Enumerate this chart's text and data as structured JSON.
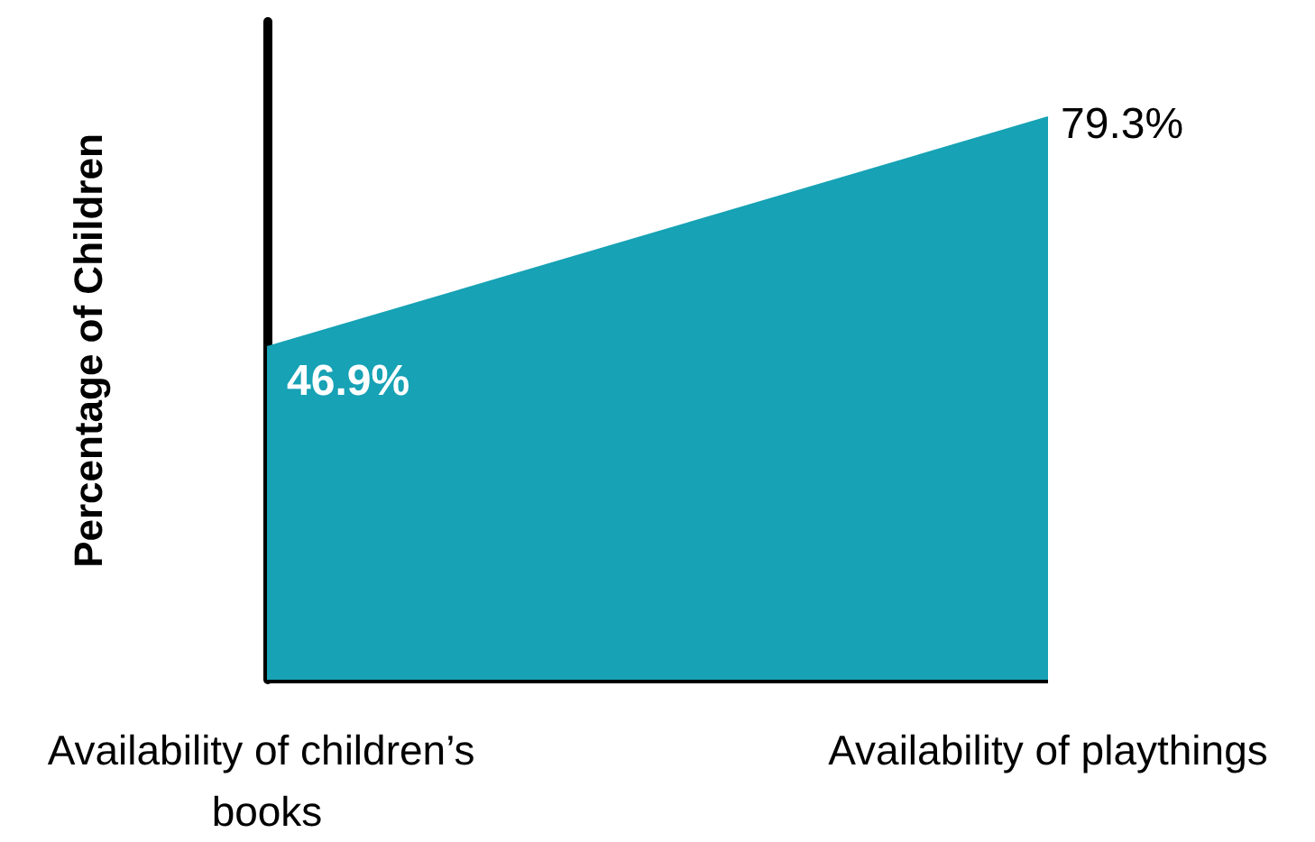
{
  "chart_data": {
    "type": "area",
    "ylabel": "Percentage of Children",
    "categories": [
      "Availability of children’s books",
      "Availability of playthings"
    ],
    "series": [
      {
        "color": "#17a2b5",
        "values": [
          46.9,
          79.3
        ],
        "value_labels": [
          "46.9%",
          "79.3%"
        ]
      }
    ],
    "tick_labels": "x"
  }
}
